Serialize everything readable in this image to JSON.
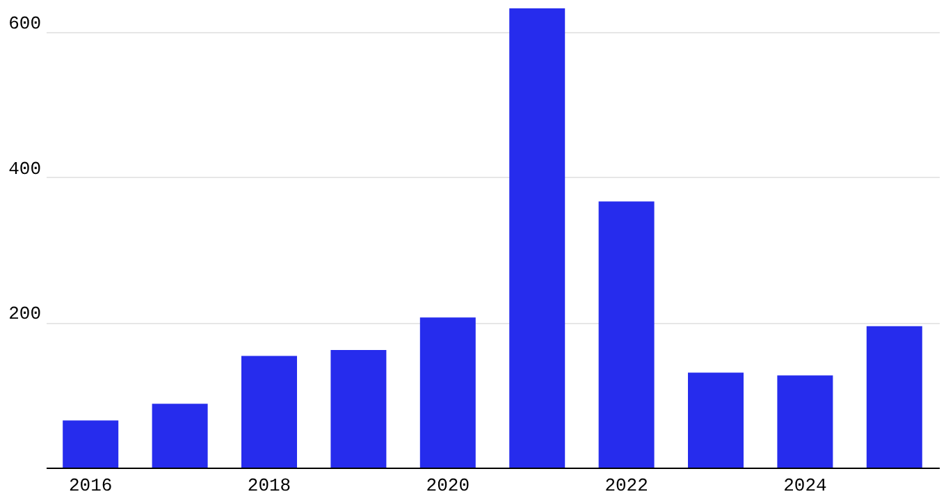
{
  "chart_data": {
    "type": "bar",
    "categories": [
      "2016",
      null,
      "2018",
      null,
      "2020",
      null,
      "2022",
      null,
      "2024",
      null
    ],
    "values": [
      65,
      88,
      154,
      162,
      207,
      633,
      367,
      131,
      127,
      195
    ],
    "color": "#262ced",
    "ylim": [
      0,
      635
    ],
    "yticks": [
      200,
      400,
      600
    ],
    "grid": "y"
  }
}
